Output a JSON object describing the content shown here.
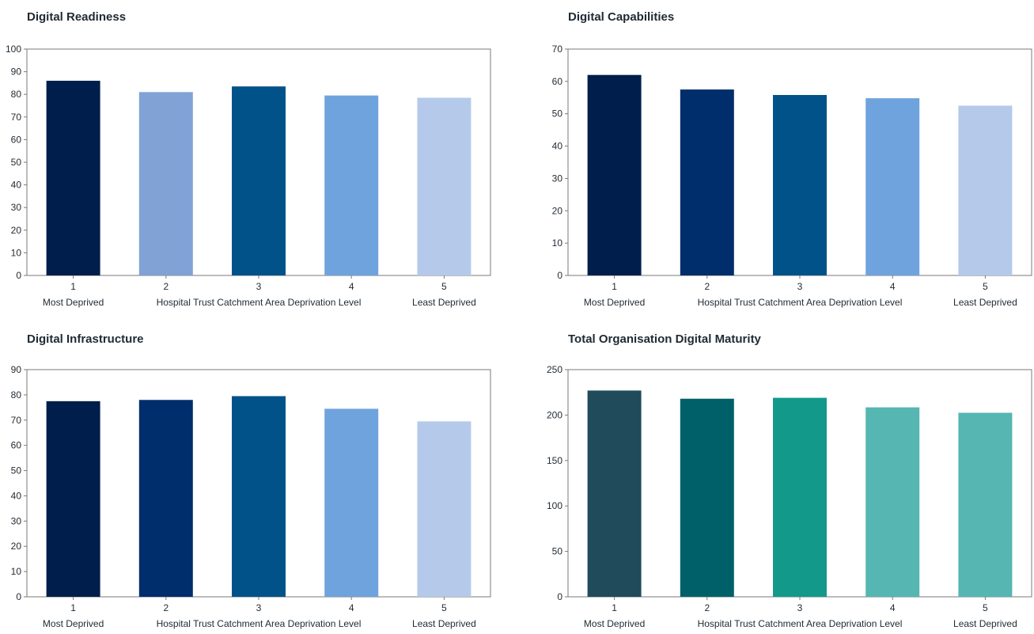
{
  "chart_data": [
    {
      "type": "bar",
      "title": "Digital Readiness",
      "categories": [
        "1",
        "2",
        "3",
        "4",
        "5"
      ],
      "category_sublabels": [
        "Most Deprived",
        "",
        "",
        "",
        "Least Deprived"
      ],
      "xlabel": "Hospital Trust Catchment Area Deprivation Level",
      "values": [
        86,
        81,
        83.5,
        79.5,
        78.5
      ],
      "colors": [
        "#001e4b",
        "#80a2d5",
        "#005289",
        "#6fa3dd",
        "#b5caea"
      ],
      "ylim": [
        0,
        100
      ],
      "yticks": [
        0,
        10,
        20,
        30,
        40,
        50,
        60,
        70,
        80,
        90,
        100
      ],
      "grid": false
    },
    {
      "type": "bar",
      "title": "Digital Capabilities",
      "categories": [
        "1",
        "2",
        "3",
        "4",
        "5"
      ],
      "category_sublabels": [
        "Most Deprived",
        "",
        "",
        "",
        "Least Deprived"
      ],
      "xlabel": "Hospital Trust Catchment Area Deprivation Level",
      "values": [
        62,
        57.5,
        55.8,
        54.8,
        52.5
      ],
      "colors": [
        "#001e4b",
        "#002d6b",
        "#005289",
        "#6fa3dd",
        "#b5caea"
      ],
      "ylim": [
        0,
        70
      ],
      "yticks": [
        0,
        10,
        20,
        30,
        40,
        50,
        60,
        70
      ],
      "grid": false
    },
    {
      "type": "bar",
      "title": "Digital Infrastructure",
      "categories": [
        "1",
        "2",
        "3",
        "4",
        "5"
      ],
      "category_sublabels": [
        "Most Deprived",
        "",
        "",
        "",
        "Least Deprived"
      ],
      "xlabel": "Hospital Trust Catchment Area Deprivation Level",
      "values": [
        77.5,
        78,
        79.5,
        74.5,
        69.5
      ],
      "colors": [
        "#001e4b",
        "#002d6b",
        "#005289",
        "#6fa3dd",
        "#b5caea"
      ],
      "ylim": [
        0,
        90
      ],
      "yticks": [
        0,
        10,
        20,
        30,
        40,
        50,
        60,
        70,
        80,
        90
      ],
      "grid": false
    },
    {
      "type": "bar",
      "title": "Total Organisation Digital Maturity",
      "categories": [
        "1",
        "2",
        "3",
        "4",
        "5"
      ],
      "category_sublabels": [
        "Most Deprived",
        "",
        "",
        "",
        "Least Deprived"
      ],
      "xlabel": "Hospital Trust Catchment Area Deprivation Level",
      "values": [
        227,
        218,
        219,
        208.5,
        202.5
      ],
      "colors": [
        "#1f4b5b",
        "#006069",
        "#12998a",
        "#55b6b2",
        "#55b6b2"
      ],
      "ylim": [
        0,
        250
      ],
      "yticks": [
        0,
        50,
        100,
        150,
        200,
        250
      ],
      "grid": false
    }
  ]
}
